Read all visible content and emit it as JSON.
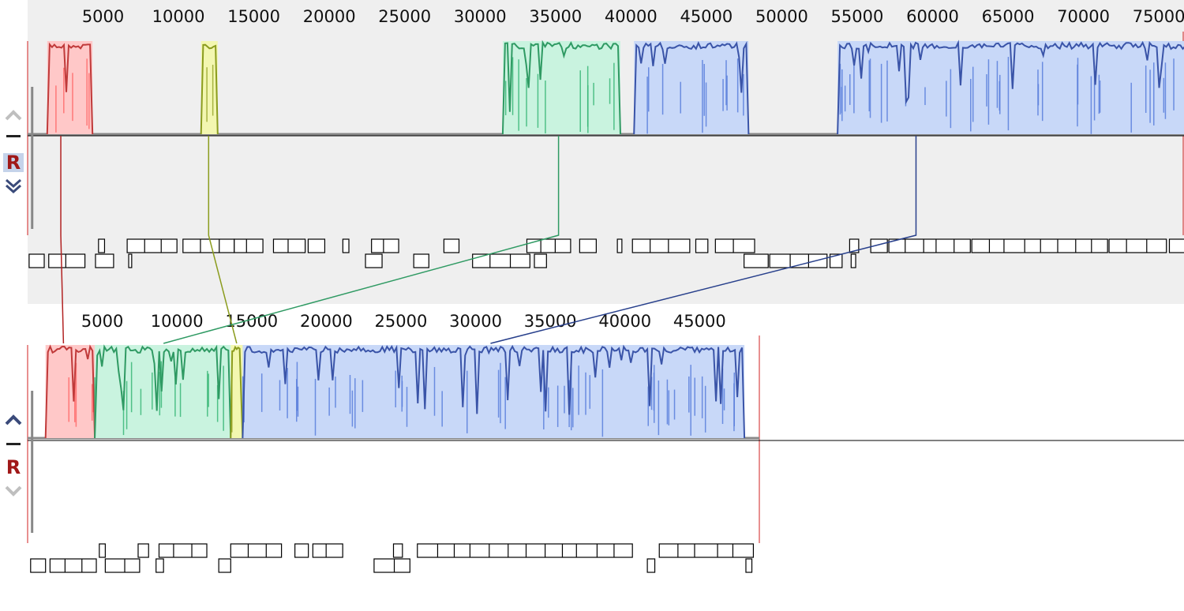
{
  "panels": [
    {
      "id": "genome-1",
      "ruler": {
        "max": 78000,
        "ticks": [
          5000,
          10000,
          15000,
          20000,
          25000,
          30000,
          35000,
          40000,
          45000,
          50000,
          55000,
          60000,
          65000,
          70000,
          75000
        ]
      },
      "controls": {
        "up_icon": "chevron-up-icon",
        "up_enabled": false,
        "minus_icon": "minus-icon",
        "r_label": "R",
        "r_selected": true,
        "down_icon": "double-chevron-down-icon",
        "down_enabled": true
      },
      "blocks": [
        {
          "name": "lcb-red",
          "color": "#ff6b6b",
          "fill": "#ffc8c8",
          "line": "#c03a3a",
          "start": 1300,
          "end": 4300
        },
        {
          "name": "lcb-olive",
          "color": "#9aa62e",
          "fill": "#f3f7b0",
          "line": "#8b9c1e",
          "start": 11500,
          "end": 12600
        },
        {
          "name": "lcb-green",
          "color": "#3ab878",
          "fill": "#c9f3df",
          "line": "#2f9a63",
          "start": 31500,
          "end": 39300
        },
        {
          "name": "lcb-blue-1",
          "color": "#5a7fdc",
          "fill": "#c8d8f8",
          "line": "#3a54a8",
          "start": 40200,
          "end": 47800
        },
        {
          "name": "lcb-blue-2",
          "color": "#5a7fdc",
          "fill": "#c8d8f8",
          "line": "#3a54a8",
          "start": 53700,
          "end": 78000
        }
      ],
      "genes_top": [
        [
          4700,
          5100
        ],
        [
          6600,
          9900
        ],
        [
          10300,
          13700
        ],
        [
          13700,
          15600
        ],
        [
          16300,
          18400
        ],
        [
          18600,
          19700
        ],
        [
          20900,
          21300
        ],
        [
          22800,
          24600
        ],
        [
          27600,
          28600
        ],
        [
          33100,
          36000
        ],
        [
          36600,
          37700
        ],
        [
          39100,
          39400
        ],
        [
          40100,
          43900
        ],
        [
          44300,
          45100
        ],
        [
          45600,
          48200
        ],
        [
          54500,
          55100
        ],
        [
          55900,
          57000
        ],
        [
          57100,
          62500
        ],
        [
          62600,
          71600
        ],
        [
          71700,
          75500
        ],
        [
          75700,
          78000
        ]
      ],
      "genes_bottom": [
        [
          100,
          1100
        ],
        [
          1400,
          3800
        ],
        [
          4500,
          5700
        ],
        [
          6700,
          6900
        ],
        [
          22400,
          23500
        ],
        [
          25600,
          26600
        ],
        [
          29500,
          33300
        ],
        [
          33600,
          34400
        ],
        [
          47500,
          49100
        ],
        [
          49200,
          53000
        ],
        [
          53200,
          54000
        ],
        [
          54600,
          54900
        ]
      ]
    },
    {
      "id": "genome-2",
      "ruler": {
        "max": 49000,
        "ticks": [
          5000,
          10000,
          15000,
          20000,
          25000,
          30000,
          35000,
          40000,
          45000
        ]
      },
      "controls": {
        "up_icon": "chevron-up-icon",
        "up_enabled": true,
        "minus_icon": "minus-icon",
        "r_label": "R",
        "r_selected": false,
        "down_icon": "chevron-down-icon",
        "down_enabled": false
      },
      "blocks": [
        {
          "name": "lcb-red",
          "color": "#ff6b6b",
          "fill": "#ffc8c8",
          "line": "#c03a3a",
          "start": 1200,
          "end": 4500
        },
        {
          "name": "lcb-green",
          "color": "#3ab878",
          "fill": "#c9f3df",
          "line": "#2f9a63",
          "start": 4500,
          "end": 13600
        },
        {
          "name": "lcb-olive",
          "color": "#9aa62e",
          "fill": "#f3f7b0",
          "line": "#8b9c1e",
          "start": 13600,
          "end": 14400
        },
        {
          "name": "lcb-blue-1",
          "color": "#5a7fdc",
          "fill": "#c8d8f8",
          "line": "#3a54a8",
          "start": 14400,
          "end": 48000
        }
      ],
      "genes_top": [
        [
          4800,
          5200
        ],
        [
          7400,
          8100
        ],
        [
          8800,
          12000
        ],
        [
          13600,
          17000
        ],
        [
          17900,
          18800
        ],
        [
          19100,
          21100
        ],
        [
          24500,
          25100
        ],
        [
          26100,
          40500
        ],
        [
          42300,
          48600
        ]
      ],
      "genes_bottom": [
        [
          200,
          1200
        ],
        [
          1500,
          4600
        ],
        [
          5200,
          7500
        ],
        [
          8600,
          9100
        ],
        [
          12800,
          13600
        ],
        [
          23200,
          25600
        ],
        [
          41500,
          42000
        ],
        [
          48100,
          48500
        ]
      ]
    }
  ],
  "connectors": [
    {
      "name": "connector-red",
      "color": "#b22222",
      "x1": 2200,
      "x2": 2400
    },
    {
      "name": "connector-olive",
      "color": "#8b9c1e",
      "x1": 12000,
      "x2": 14000
    },
    {
      "name": "connector-green",
      "color": "#2f9a63",
      "x1": 35200,
      "x2": 9100
    },
    {
      "name": "connector-blue",
      "color": "#28408c",
      "x1": 58900,
      "x2": 31000
    }
  ]
}
